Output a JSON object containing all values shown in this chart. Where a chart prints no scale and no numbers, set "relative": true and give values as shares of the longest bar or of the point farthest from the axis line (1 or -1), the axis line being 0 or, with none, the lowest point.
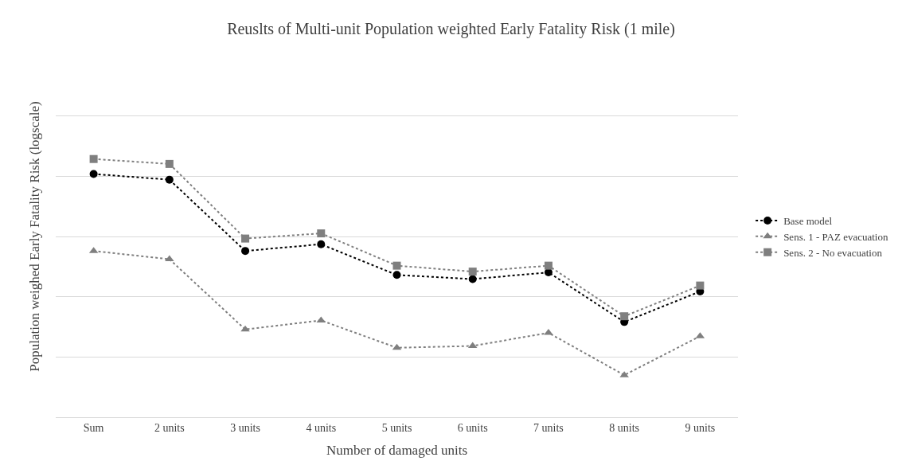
{
  "chart_data": {
    "type": "line",
    "title": "Reuslts of Multi-unit Population weighted Early Fatality Risk (1 mile)",
    "xlabel": "Number of damaged units",
    "ylabel": "Population weighed Early Fatality Risk (logscale)",
    "categories": [
      "Sum",
      "2 units",
      "3 units",
      "4 units",
      "5 units",
      "6 units",
      "7 units",
      "8 units",
      "9 units"
    ],
    "relative": true,
    "grid": "y",
    "legend": "right",
    "line_style": "dotted",
    "series": [
      {
        "name": "Base model",
        "color": "#000000",
        "marker": "circle",
        "values": [
          0.942,
          0.92,
          0.644,
          0.67,
          0.551,
          0.535,
          0.561,
          0.369,
          0.487
        ]
      },
      {
        "name": "Sens. 1 - PAZ evacuation",
        "color": "#7f7f7f",
        "marker": "triangle",
        "values": [
          0.644,
          0.612,
          0.34,
          0.375,
          0.269,
          0.276,
          0.327,
          0.163,
          0.314
        ]
      },
      {
        "name": "Sens. 2 - No evacuation",
        "color": "#7f7f7f",
        "marker": "square",
        "values": [
          1,
          0.981,
          0.692,
          0.712,
          0.587,
          0.564,
          0.587,
          0.391,
          0.51
        ]
      }
    ]
  }
}
